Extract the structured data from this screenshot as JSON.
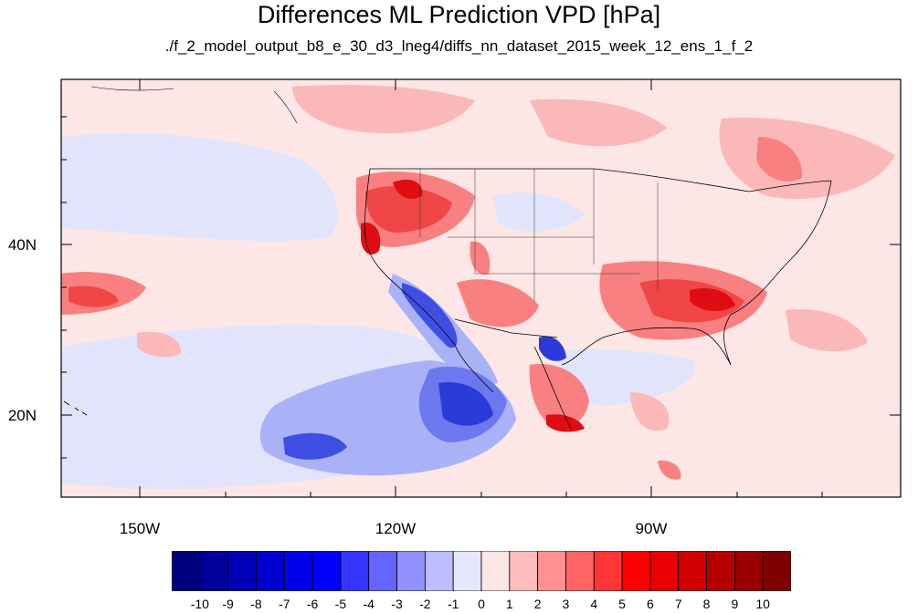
{
  "title": "Differences ML Prediction VPD [hPa]",
  "subtitle": "./f_2_model_output_b8_e_30_d3_lneg4/diffs_nn_dataset_2015_week_12_ens_1_f_2",
  "lat_labels": [
    "40N",
    "20N"
  ],
  "lon_labels": [
    "150W",
    "120W",
    "90W"
  ],
  "colorbar": {
    "labels": [
      "-10",
      "-9",
      "-8",
      "-7",
      "-6",
      "-5",
      "-4",
      "-3",
      "-2",
      "-1",
      "0",
      "1",
      "2",
      "3",
      "4",
      "5",
      "6",
      "7",
      "8",
      "9",
      "10"
    ],
    "colors": [
      "#00007f",
      "#00009b",
      "#0000b6",
      "#0000d0",
      "#0000ea",
      "#0000ff",
      "#3535ff",
      "#6565ff",
      "#9090ff",
      "#bcbcff",
      "#e6e6fb",
      "#fde6e6",
      "#ffbcbc",
      "#ff9090",
      "#ff6565",
      "#ff3535",
      "#ff0000",
      "#ea0000",
      "#d00000",
      "#b60000",
      "#9b0000",
      "#7f0000"
    ]
  },
  "palette": {
    "blue_dark": "#2b3bd9",
    "blue_mid": "#6b78ee",
    "blue_light": "#aab2f7",
    "blue_pale": "#e1e4fb",
    "pink_pale": "#fde6e6",
    "red_light": "#fbb8b8",
    "red_mid": "#f98080",
    "red_strong": "#f14646",
    "red_dark": "#e00d12"
  }
}
